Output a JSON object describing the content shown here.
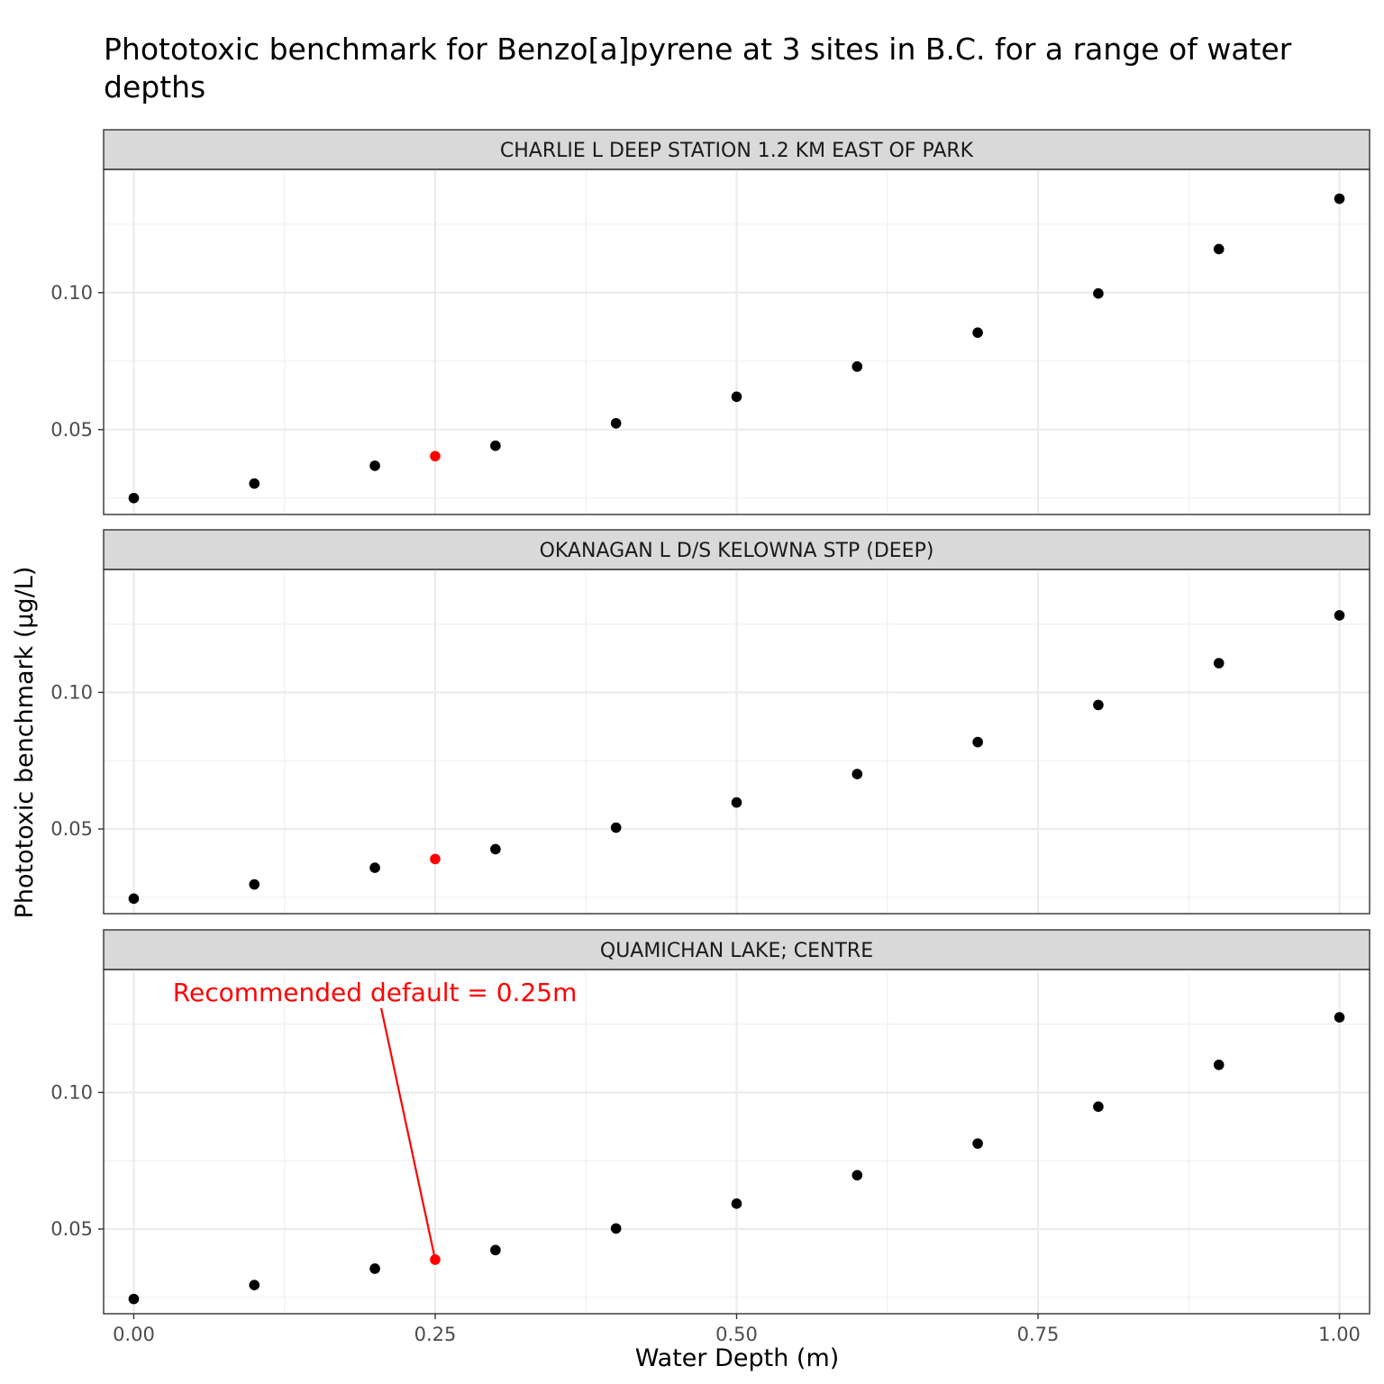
{
  "chart_data": {
    "type": "scatter",
    "title": [
      "Phototoxic benchmark for Benzo[a]pyrene at 3 sites in B.C. for a range of water",
      "depths"
    ],
    "xlabel": "Water Depth (m)",
    "ylabel": "Phototoxic benchmark (µg/L)",
    "xlim": [
      -0.025,
      1.025
    ],
    "ylim": [
      0.019,
      0.145
    ],
    "x_ticks": [
      0.0,
      0.25,
      0.5,
      0.75,
      1.0
    ],
    "x_tick_labels": [
      "0.00",
      "0.25",
      "0.50",
      "0.75",
      "1.00"
    ],
    "y_ticks": [
      0.05,
      0.1
    ],
    "y_tick_labels": [
      "0.05",
      "0.10"
    ],
    "grid": true,
    "point_color": "#000000",
    "highlight_color": "#ff0000",
    "highlight_x": 0.25,
    "annotation": {
      "text": "Recommended default = 0.25m",
      "panel": 2,
      "x": 0.2,
      "y": 0.1355,
      "color": "#ff0000"
    },
    "panels": [
      {
        "title": "CHARLIE L DEEP STATION 1.2 KM EAST OF PARK",
        "x": [
          0.0,
          0.1,
          0.2,
          0.25,
          0.3,
          0.4,
          0.5,
          0.6,
          0.7,
          0.8,
          0.9,
          1.0
        ],
        "y": [
          0.025,
          0.0303,
          0.0368,
          0.0403,
          0.0441,
          0.0523,
          0.062,
          0.073,
          0.0854,
          0.0997,
          0.1159,
          0.1343
        ]
      },
      {
        "title": "OKANAGAN L D/S KELOWNA STP (DEEP)",
        "x": [
          0.0,
          0.1,
          0.2,
          0.25,
          0.3,
          0.4,
          0.5,
          0.6,
          0.7,
          0.8,
          0.9,
          1.0
        ],
        "y": [
          0.0245,
          0.0297,
          0.0358,
          0.039,
          0.0426,
          0.0505,
          0.0597,
          0.0701,
          0.0818,
          0.0954,
          0.1107,
          0.1282
        ]
      },
      {
        "title": "QUAMICHAN LAKE; CENTRE",
        "x": [
          0.0,
          0.1,
          0.2,
          0.25,
          0.3,
          0.4,
          0.5,
          0.6,
          0.7,
          0.8,
          0.9,
          1.0
        ],
        "y": [
          0.0244,
          0.0295,
          0.0355,
          0.0388,
          0.0423,
          0.0502,
          0.0593,
          0.0697,
          0.0813,
          0.0948,
          0.1101,
          0.1275
        ]
      }
    ]
  }
}
